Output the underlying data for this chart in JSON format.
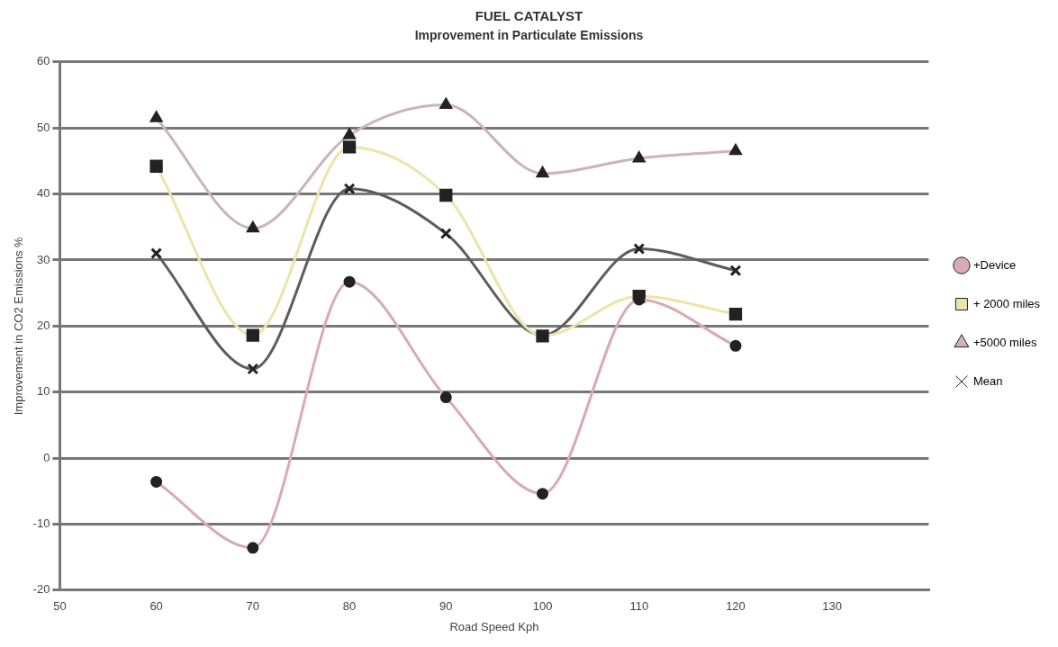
{
  "chart_data": {
    "type": "line",
    "title": "FUEL CATALYST",
    "subtitle": "Improvement in Particulate Emissions",
    "xlabel": "Road Speed Kph",
    "ylabel": "Improvement in CO2 Emissions %",
    "x": [
      60,
      70,
      80,
      90,
      100,
      110,
      120
    ],
    "series": [
      {
        "name": "+Device",
        "color": "#d9a9b4",
        "marker": "circle",
        "values": [
          -3.6,
          -13.6,
          26.7,
          9.2,
          -5.4,
          24,
          17
        ]
      },
      {
        "name": "+ 2000 miles",
        "color": "#ece4a8",
        "marker": "square",
        "values": [
          44.2,
          18.6,
          47.1,
          39.8,
          18.5,
          24.5,
          21.8
        ]
      },
      {
        "name": "+5000 miles",
        "color": "#cdb3bd",
        "marker": "triangle",
        "values": [
          51.5,
          34.8,
          48.9,
          53.5,
          43.1,
          45.4,
          46.5
        ]
      },
      {
        "name": "Mean",
        "color": "#5c5c5c",
        "marker": "cross",
        "values": [
          31,
          13.5,
          40.8,
          34,
          18.6,
          31.7,
          28.4
        ]
      }
    ],
    "xlim": [
      50,
      140
    ],
    "xticks": [
      50,
      60,
      70,
      80,
      90,
      100,
      110,
      120,
      130
    ],
    "ylim": [
      -20,
      60
    ],
    "yticks": [
      -20,
      -10,
      0,
      10,
      20,
      30,
      40,
      50,
      60
    ],
    "grid": "y",
    "legend": "right",
    "line_style": "solid"
  }
}
